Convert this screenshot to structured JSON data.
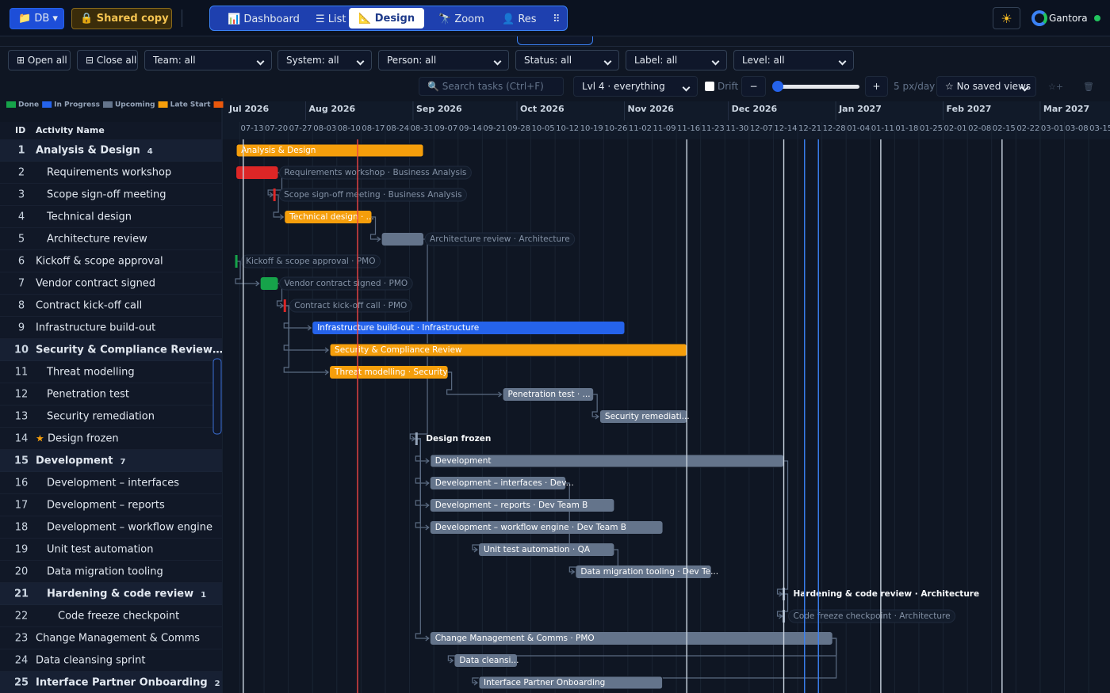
{
  "toolbar": {
    "db": "📁 DB ▾",
    "shared": "🔒 Shared copy",
    "tabs": [
      {
        "label": "📊 Dashboard"
      },
      {
        "label": "☰ List"
      },
      {
        "label": "📐 Design",
        "active": true
      },
      {
        "label": "🔭 Zoom"
      },
      {
        "label": "👤 Res"
      },
      {
        "label": "⠿"
      }
    ],
    "theme": "☀",
    "brand": "Gantora"
  },
  "filters": {
    "open_all": "⊞ Open all",
    "close_all": "⊟ Close all",
    "selects": [
      "Team: all",
      "System: all",
      "Person: all",
      "Status: all",
      "Label: all",
      "Level: all"
    ]
  },
  "toolbar2": {
    "search": "🔍 Search tasks (Ctrl+F)",
    "level": "Lvl 4 · everything",
    "drift": "Drift",
    "zoom_out": "−",
    "zoom_in": "+",
    "scale": "5 px/day",
    "views": "☆ No saved views",
    "save_view": "☆+",
    "delete": "🗑"
  },
  "legend": [
    {
      "name": "Done",
      "color": "#16a34a"
    },
    {
      "name": "In Progress",
      "color": "#2563eb"
    },
    {
      "name": "Upcoming",
      "color": "#64748b"
    },
    {
      "name": "Late Start",
      "color": "#f59e0b"
    }
  ],
  "timeline": {
    "months": [
      "Jul 2026",
      "Aug 2026",
      "Sep 2026",
      "Oct 2026",
      "Nov 2026",
      "Dec 2026",
      "Jan 2027",
      "Feb 2027",
      "Mar 2027"
    ],
    "weeks": [
      "07-13",
      "07-20",
      "07-27",
      "08-03",
      "08-10",
      "08-17",
      "08-24",
      "08-31",
      "09-07",
      "09-14",
      "09-21",
      "09-28",
      "10-05",
      "10-12",
      "10-19",
      "10-26",
      "11-02",
      "11-09",
      "11-16",
      "11-23",
      "11-30",
      "12-07",
      "12-14",
      "12-21",
      "12-28",
      "01-04",
      "01-11",
      "01-18",
      "01-25",
      "02-01",
      "02-08",
      "02-15",
      "02-22",
      "03-01",
      "03-08",
      "03-15"
    ],
    "markers": [
      {
        "date": "2026-08-16",
        "color": "#ef4444"
      },
      {
        "date": "2026-07-14",
        "color": "#cbd5e1"
      },
      {
        "date": "2026-11-19",
        "color": "#cbd5e1"
      },
      {
        "date": "2026-12-17",
        "color": "#cbd5e1"
      },
      {
        "date": "2026-12-23",
        "color": "#3b82f6"
      },
      {
        "date": "2026-12-27",
        "color": "#3b82f6"
      },
      {
        "date": "2027-01-14",
        "color": "#cbd5e1"
      },
      {
        "date": "2027-02-18",
        "color": "#cbd5e1"
      }
    ]
  },
  "table": {
    "header": {
      "id": "ID",
      "name": "Activity Name"
    },
    "rows": [
      {
        "id": 1,
        "name": "Analysis & Design",
        "level": 0,
        "summary": true,
        "count": 4,
        "start": "2026-07-12",
        "end": "2026-09-04",
        "color": "#f59e0b",
        "label": "Analysis & Design",
        "label_pos": "inside"
      },
      {
        "id": 2,
        "name": "Requirements workshop",
        "level": 1,
        "start": "2026-07-12",
        "end": "2026-07-24",
        "color": "#dc2626",
        "label": "Requirements workshop · Business Analysis",
        "label_pos": "outside"
      },
      {
        "id": 3,
        "name": "Scope sign-off meeting",
        "level": 1,
        "milestone": "2026-07-23",
        "color": "#dc2626",
        "label": "Scope sign-off meeting · Business Analysis",
        "label_pos": "outside",
        "after": 2
      },
      {
        "id": 4,
        "name": "Technical design",
        "level": 1,
        "start": "2026-07-26",
        "end": "2026-08-20",
        "color": "#f59e0b",
        "label": "Technical design · ...",
        "label_pos": "inside",
        "after": 3
      },
      {
        "id": 5,
        "name": "Architecture review",
        "level": 1,
        "start": "2026-08-23",
        "end": "2026-09-04",
        "color": "#64748b",
        "label": "Architecture review · Architecture",
        "label_pos": "outside",
        "after": 4
      },
      {
        "id": 6,
        "name": "Kickoff & scope approval",
        "level": 0,
        "milestone": "2026-07-12",
        "color": "#16a34a",
        "label": "Kickoff & scope approval · PMO",
        "label_pos": "outside"
      },
      {
        "id": 7,
        "name": "Vendor contract signed",
        "level": 0,
        "start": "2026-07-19",
        "end": "2026-07-24",
        "color": "#16a34a",
        "label": "Vendor contract signed · PMO",
        "label_pos": "outside",
        "after": 6
      },
      {
        "id": 8,
        "name": "Contract kick-off call",
        "level": 0,
        "milestone": "2026-07-26",
        "color": "#dc2626",
        "label": "Contract kick-off call · PMO",
        "label_pos": "outside",
        "after": 7
      },
      {
        "id": 9,
        "name": "Infrastructure build-out",
        "level": 0,
        "start": "2026-08-03",
        "end": "2026-11-01",
        "color": "#2563eb",
        "label": "Infrastructure build-out · Infrastructure",
        "label_pos": "inside",
        "after": 8
      },
      {
        "id": 10,
        "name": "Security & Compliance Review…",
        "level": 0,
        "summary": true,
        "start": "2026-08-08",
        "end": "2026-11-19",
        "color": "#f59e0b",
        "label": "Security & Compliance Review",
        "label_pos": "inside",
        "after": 8
      },
      {
        "id": 11,
        "name": "Threat modelling",
        "level": 1,
        "start": "2026-08-08",
        "end": "2026-09-11",
        "color": "#f59e0b",
        "label": "Threat modelling · Security",
        "label_pos": "inside",
        "after": 8
      },
      {
        "id": 12,
        "name": "Penetration test",
        "level": 1,
        "start": "2026-09-27",
        "end": "2026-10-23",
        "color": "#64748b",
        "label": "Penetration test · ...",
        "label_pos": "inside",
        "after": 11
      },
      {
        "id": 13,
        "name": "Security remediation",
        "level": 1,
        "start": "2026-10-25",
        "end": "2026-11-19",
        "color": "#64748b",
        "label": "Security remediati...",
        "label_pos": "inside",
        "after": 12
      },
      {
        "id": 14,
        "name": "Design frozen",
        "icon": "★",
        "level": 0,
        "milestone": "2026-09-02",
        "color": "#94a3b8",
        "label": "Design frozen",
        "label_pos": "outside",
        "after": 5
      },
      {
        "id": 15,
        "name": "Development",
        "level": 0,
        "summary": true,
        "count": 7,
        "start": "2026-09-06",
        "end": "2026-12-17",
        "color": "#64748b",
        "label": "Development",
        "label_pos": "inside",
        "after": 14
      },
      {
        "id": 16,
        "name": "Development – interfaces",
        "level": 1,
        "start": "2026-09-06",
        "end": "2026-10-15",
        "color": "#64748b",
        "label": "Development – interfaces · Dev...",
        "label_pos": "inside",
        "after": 14
      },
      {
        "id": 17,
        "name": "Development – reports",
        "level": 1,
        "start": "2026-09-06",
        "end": "2026-10-29",
        "color": "#64748b",
        "label": "Development – reports · Dev Team B",
        "label_pos": "inside",
        "after": 14
      },
      {
        "id": 18,
        "name": "Development – workflow engine",
        "level": 1,
        "start": "2026-09-06",
        "end": "2026-11-12",
        "color": "#64748b",
        "label": "Development – workflow engine · Dev Team B",
        "label_pos": "inside",
        "after": 14
      },
      {
        "id": 19,
        "name": "Unit test automation",
        "level": 1,
        "start": "2026-09-20",
        "end": "2026-10-29",
        "color": "#64748b",
        "label": "Unit test automation · QA",
        "label_pos": "inside",
        "after": 16
      },
      {
        "id": 20,
        "name": "Data migration tooling",
        "level": 1,
        "start": "2026-10-18",
        "end": "2026-11-26",
        "color": "#64748b",
        "label": "Data migration tooling · Dev Te...",
        "label_pos": "inside",
        "after": 19
      },
      {
        "id": 21,
        "name": "Hardening & code review",
        "level": 1,
        "summary": true,
        "count": 1,
        "milestone": "2026-12-17",
        "color": "#94a3b8",
        "label": "Hardening & code review · Architecture",
        "label_pos": "outside",
        "after": 15
      },
      {
        "id": 22,
        "name": "Code freeze checkpoint",
        "level": 2,
        "milestone": "2026-12-17",
        "color": "#94a3b8",
        "label": "Code freeze checkpoint · Architecture",
        "label_pos": "outside",
        "after": 21
      },
      {
        "id": 23,
        "name": "Change Management & Comms",
        "level": 0,
        "start": "2026-09-06",
        "end": "2026-12-31",
        "color": "#64748b",
        "label": "Change Management & Comms · PMO",
        "label_pos": "inside",
        "after": 14
      },
      {
        "id": 24,
        "name": "Data cleansing sprint",
        "level": 0,
        "start": "2026-09-13",
        "end": "2026-10-01",
        "color": "#64748b",
        "label": "Data cleansi...",
        "label_pos": "inside",
        "after": 23
      },
      {
        "id": 25,
        "name": "Interface Partner Onboarding",
        "level": 0,
        "summary": true,
        "count": 2,
        "start": "2026-09-20",
        "end": "2026-11-12",
        "color": "#64748b",
        "label": "Interface Partner Onboarding",
        "label_pos": "inside",
        "after": 23
      }
    ]
  }
}
